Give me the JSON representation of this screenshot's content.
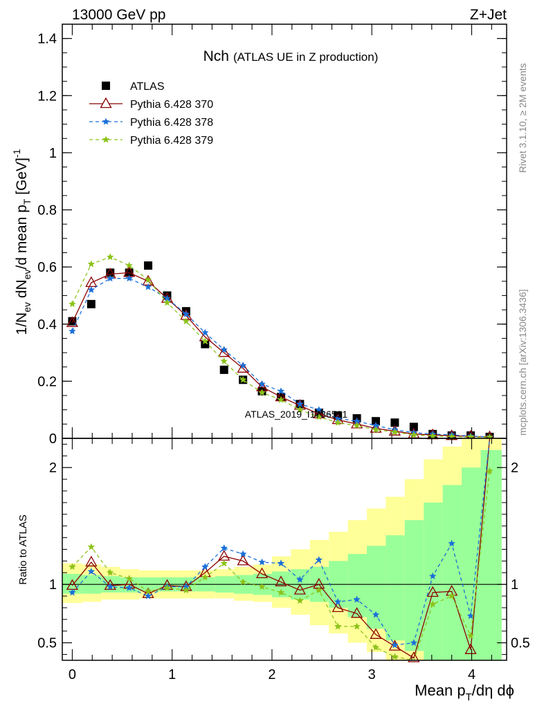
{
  "header": {
    "left": "13000 GeV pp",
    "right": "Z+Jet"
  },
  "chart_title": {
    "main": "Nch",
    "sub": "(ATLAS UE in Z production)"
  },
  "watermark": "ATLAS_2019_I1736531",
  "side_labels": {
    "rivet": "Rivet 3.1.10, ≥ 2M events",
    "mcplots": "mcplots.cern.ch [arXiv:1306.3436]"
  },
  "colors": {
    "atlas": "#000000",
    "p370": "#8b0000",
    "p378": "#1a6fd8",
    "p379": "#8cc21a",
    "band_outer": "#ffff99",
    "band_inner": "#99ff99",
    "unity": "#000000"
  },
  "chart_data": [
    {
      "type": "scatter",
      "ylabel": {
        "a": "1/N",
        "a_sub": "ev",
        "b": " dN",
        "b_sub": "ev",
        "c": "/d mean p",
        "c_sub": "T",
        "d": " [GeV]",
        "d_sup": "-1"
      },
      "ylim": [
        0,
        1.45
      ],
      "xlim": [
        -0.1,
        4.35
      ],
      "yticks": [
        0,
        0.2,
        0.4,
        0.6,
        0.8,
        1,
        1.2,
        1.4
      ],
      "ytick_labels": [
        "0",
        "0.2",
        "0.4",
        "0.6",
        "0.8",
        "1",
        "1.2",
        "1.4"
      ],
      "legend_position": "top-left",
      "x": [
        0,
        0.19,
        0.38,
        0.57,
        0.76,
        0.95,
        1.14,
        1.33,
        1.52,
        1.71,
        1.9,
        2.09,
        2.28,
        2.47,
        2.66,
        2.85,
        3.04,
        3.23,
        3.42,
        3.61,
        3.8,
        3.99,
        4.18
      ],
      "series": [
        {
          "name": "ATLAS",
          "marker": "square",
          "values": [
            0.41,
            0.47,
            0.58,
            0.58,
            0.605,
            0.5,
            0.445,
            0.33,
            0.24,
            0.205,
            0.165,
            0.145,
            0.12,
            0.09,
            0.08,
            0.07,
            0.06,
            0.055,
            0.04,
            0.015,
            0.01,
            0.01,
            0.005
          ]
        },
        {
          "name": "Pythia 6.428 370",
          "marker": "triangle",
          "values": [
            0.405,
            0.545,
            0.575,
            0.58,
            0.55,
            0.49,
            0.43,
            0.355,
            0.3,
            0.245,
            0.18,
            0.145,
            0.115,
            0.085,
            0.065,
            0.05,
            0.035,
            0.025,
            0.015,
            0.012,
            0.009,
            0.007,
            0.005
          ]
        },
        {
          "name": "Pythia 6.428 378",
          "marker": "star",
          "values": [
            0.375,
            0.52,
            0.56,
            0.56,
            0.53,
            0.49,
            0.435,
            0.37,
            0.31,
            0.255,
            0.19,
            0.165,
            0.12,
            0.1,
            0.07,
            0.06,
            0.045,
            0.03,
            0.02,
            0.015,
            0.012,
            0.008,
            0.005
          ]
        },
        {
          "name": "Pythia 6.428 379",
          "marker": "star",
          "values": [
            0.47,
            0.61,
            0.635,
            0.605,
            0.555,
            0.475,
            0.41,
            0.34,
            0.27,
            0.205,
            0.16,
            0.135,
            0.1,
            0.075,
            0.055,
            0.045,
            0.03,
            0.022,
            0.012,
            0.008,
            0.006,
            0.005,
            0.004
          ]
        }
      ]
    },
    {
      "type": "line",
      "ylabel": "Ratio to ATLAS",
      "xlabel": {
        "a": "Mean p",
        "a_sub": "T",
        "b": "/dη dϕ"
      },
      "ylim": [
        0.35,
        2.25
      ],
      "xlim": [
        -0.1,
        4.35
      ],
      "yticks": [
        0.5,
        1,
        2
      ],
      "ytick_labels": [
        "0.5",
        "1",
        "2"
      ],
      "xticks": [
        0,
        1,
        2,
        3,
        4
      ],
      "xtick_labels": [
        "0",
        "1",
        "2",
        "3",
        "4"
      ],
      "x": [
        0,
        0.19,
        0.38,
        0.57,
        0.76,
        0.95,
        1.14,
        1.33,
        1.52,
        1.71,
        1.9,
        2.09,
        2.28,
        2.47,
        2.66,
        2.85,
        3.04,
        3.23,
        3.42,
        3.61,
        3.8,
        3.99,
        4.18
      ],
      "bands": {
        "edges": [
          -0.1,
          0.1,
          0.29,
          0.48,
          0.67,
          0.86,
          1.05,
          1.24,
          1.43,
          1.62,
          1.81,
          2.0,
          2.19,
          2.38,
          2.57,
          2.76,
          2.95,
          3.14,
          3.33,
          3.52,
          3.71,
          3.9,
          4.09,
          4.3
        ],
        "outer_low": [
          0.84,
          0.85,
          0.87,
          0.87,
          0.88,
          0.88,
          0.88,
          0.88,
          0.88,
          0.86,
          0.85,
          0.8,
          0.74,
          0.65,
          0.58,
          0.5,
          0.42,
          0.35,
          0.35,
          0.35,
          0.35,
          0.35,
          0.35
        ],
        "outer_high": [
          1.18,
          1.17,
          1.15,
          1.13,
          1.12,
          1.12,
          1.12,
          1.12,
          1.13,
          1.15,
          1.17,
          1.24,
          1.3,
          1.38,
          1.45,
          1.55,
          1.65,
          1.75,
          1.9,
          2.07,
          2.18,
          2.25,
          2.25
        ],
        "inner_low": [
          0.92,
          0.92,
          0.93,
          0.93,
          0.94,
          0.94,
          0.94,
          0.94,
          0.93,
          0.92,
          0.91,
          0.89,
          0.87,
          0.85,
          0.8,
          0.72,
          0.62,
          0.52,
          0.43,
          0.35,
          0.35,
          0.35,
          0.35
        ],
        "inner_high": [
          1.09,
          1.08,
          1.07,
          1.06,
          1.06,
          1.06,
          1.06,
          1.06,
          1.07,
          1.08,
          1.09,
          1.11,
          1.13,
          1.15,
          1.2,
          1.26,
          1.33,
          1.42,
          1.55,
          1.7,
          1.85,
          2.0,
          2.15
        ]
      },
      "series": [
        {
          "name": "Pythia 6.428 370",
          "values": [
            0.99,
            1.19,
            0.99,
            1.0,
            0.92,
            0.99,
            0.98,
            1.1,
            1.24,
            1.2,
            1.09,
            1.02,
            0.95,
            1.0,
            0.8,
            0.75,
            0.57,
            0.47,
            0.37,
            0.93,
            0.94,
            0.44,
            2.3
          ]
        },
        {
          "name": "Pythia 6.428 378",
          "values": [
            0.93,
            1.11,
            0.98,
            0.97,
            0.9,
            0.98,
            0.98,
            1.15,
            1.31,
            1.26,
            1.19,
            1.18,
            1.04,
            1.21,
            0.85,
            0.87,
            0.74,
            0.48,
            0.5,
            1.07,
            1.35,
            0.73,
            2.4
          ]
        },
        {
          "name": "Pythia 6.428 379",
          "values": [
            1.15,
            1.32,
            1.1,
            1.05,
            0.94,
            0.97,
            0.95,
            1.06,
            1.18,
            1.02,
            0.98,
            0.93,
            0.86,
            0.95,
            0.64,
            0.64,
            0.46,
            0.38,
            0.3,
            0.83,
            0.9,
            0.56,
            1.97
          ]
        }
      ]
    }
  ]
}
